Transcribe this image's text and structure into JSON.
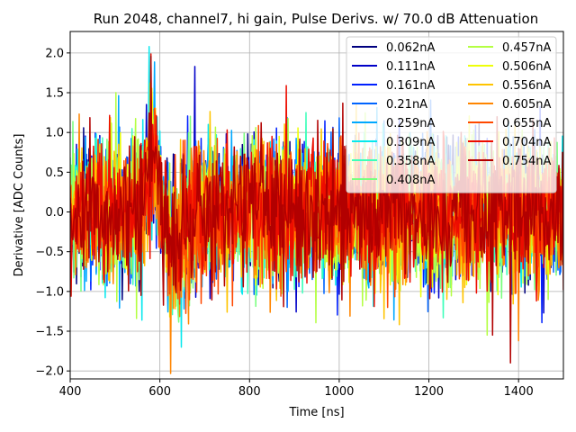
{
  "chart_data": {
    "type": "line",
    "title": "Run 2048, channel7, hi gain, Pulse Derivs. w/ 70.0 dB Attenuation",
    "xlabel": "Time [ns]",
    "ylabel": "Derivative [ADC Counts]",
    "xlim": [
      400,
      1500
    ],
    "ylim": [
      -2.1,
      2.27
    ],
    "xticks": [
      400,
      600,
      800,
      1000,
      1200,
      1400
    ],
    "yticks": [
      -2.0,
      -1.5,
      -1.0,
      -0.5,
      0.0,
      0.5,
      1.0,
      1.5,
      2.0
    ],
    "xtick_labels": [
      "400",
      "600",
      "800",
      "1000",
      "1200",
      "1400"
    ],
    "ytick_labels": [
      "−2.0",
      "−1.5",
      "−1.0",
      "−0.5",
      "0.0",
      "0.5",
      "1.0",
      "1.5",
      "2.0"
    ],
    "grid": true,
    "legend_position": "top-right",
    "legend_columns": 2,
    "series": [
      {
        "name": "0.062nA",
        "color": "#00007f",
        "noise": 0.45,
        "peak": 0.9
      },
      {
        "name": "0.111nA",
        "color": "#0000c8",
        "noise": 0.46,
        "peak": 0.95
      },
      {
        "name": "0.161nA",
        "color": "#0020ff",
        "noise": 0.47,
        "peak": 1.0
      },
      {
        "name": "0.21nA",
        "color": "#0064ff",
        "noise": 0.47,
        "peak": 1.0
      },
      {
        "name": "0.259nA",
        "color": "#00a8ff",
        "noise": 0.48,
        "peak": 1.05
      },
      {
        "name": "0.309nA",
        "color": "#08e8ee",
        "noise": 0.48,
        "peak": 1.05
      },
      {
        "name": "0.358nA",
        "color": "#3dffba",
        "noise": 0.48,
        "peak": 1.1
      },
      {
        "name": "0.408nA",
        "color": "#79ff7e",
        "noise": 0.49,
        "peak": 1.1
      },
      {
        "name": "0.457nA",
        "color": "#b4ff43",
        "noise": 0.49,
        "peak": 1.15
      },
      {
        "name": "0.506nA",
        "color": "#eeff09",
        "noise": 0.5,
        "peak": 1.15
      },
      {
        "name": "0.556nA",
        "color": "#ffc400",
        "noise": 0.5,
        "peak": 1.2
      },
      {
        "name": "0.605nA",
        "color": "#ff8500",
        "noise": 0.5,
        "peak": 1.25
      },
      {
        "name": "0.655nA",
        "color": "#ff4800",
        "noise": 0.5,
        "peak": 1.3
      },
      {
        "name": "0.704nA",
        "color": "#ed0d00",
        "noise": 0.5,
        "peak": 1.35
      },
      {
        "name": "0.754nA",
        "color": "#b20000",
        "noise": 0.5,
        "peak": 1.4
      }
    ],
    "annotations": {
      "spike_time_ns": 678,
      "spike_value": 1.83,
      "pulse_peak_time_ns": 585,
      "notable_minima": [
        {
          "time_ns": 1382,
          "value": -1.9
        },
        {
          "time_ns": 1400,
          "value": -1.62
        },
        {
          "time_ns": 1330,
          "value": -1.55
        },
        {
          "time_ns": 648,
          "value": -1.7
        }
      ]
    }
  }
}
